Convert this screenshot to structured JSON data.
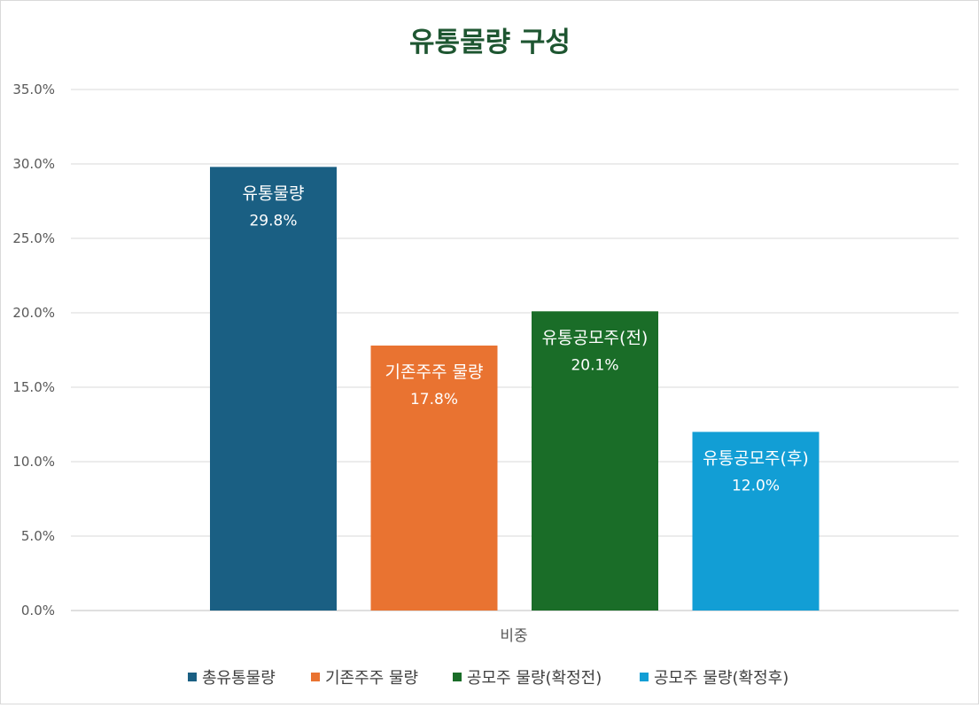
{
  "chart_data": {
    "type": "bar",
    "title": "유통물량 구성",
    "title_color": "#1e5631",
    "categories": [
      "비중"
    ],
    "series": [
      {
        "name": "총유통물량",
        "value": 29.8,
        "value_label": "29.8%",
        "bar_label": "유통물량",
        "color": "#1a5f83"
      },
      {
        "name": "기존주주 물량",
        "value": 17.8,
        "value_label": "17.8%",
        "bar_label": "기존주주 물량",
        "color": "#e97331"
      },
      {
        "name": "공모주 물량(확정전)",
        "value": 20.1,
        "value_label": "20.1%",
        "bar_label": "유통공모주(전)",
        "color": "#1a6d28"
      },
      {
        "name": "공모주 물량(확정후)",
        "value": 12.0,
        "value_label": "12.0%",
        "bar_label": "유통공모주(후)",
        "color": "#129ed5"
      }
    ],
    "ylim": [
      0,
      35
    ],
    "yticks": [
      "0.0%",
      "5.0%",
      "10.0%",
      "15.0%",
      "20.0%",
      "25.0%",
      "30.0%",
      "35.0%"
    ],
    "grid": true,
    "legend_position": "bottom"
  }
}
